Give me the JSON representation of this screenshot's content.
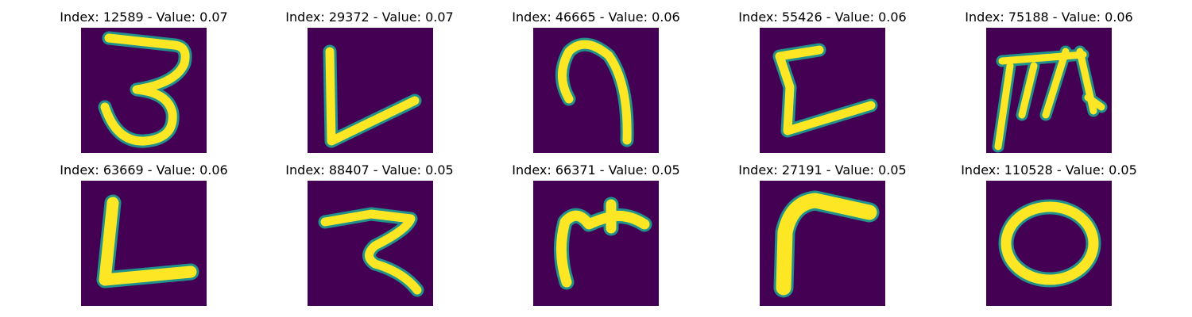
{
  "figure": {
    "panels": [
      {
        "title": "Index: 12589 - Value: 0.07",
        "glyph": "three-shape"
      },
      {
        "title": "Index: 29372 - Value: 0.07",
        "glyph": "l-shape-slanted"
      },
      {
        "title": "Index: 46665 - Value: 0.06",
        "glyph": "hook-shape"
      },
      {
        "title": "Index: 55426 - Value: 0.06",
        "glyph": "bracket-shape"
      },
      {
        "title": "Index: 75188 - Value: 0.06",
        "glyph": "stroke-cluster-shape"
      },
      {
        "title": "Index: 63669 - Value: 0.06",
        "glyph": "l-shape"
      },
      {
        "title": "Index: 88407 - Value: 0.05",
        "glyph": "z-curve-shape"
      },
      {
        "title": "Index: 66371 - Value: 0.05",
        "glyph": "branch-shape"
      },
      {
        "title": "Index: 27191 - Value: 0.05",
        "glyph": "angle-shape"
      },
      {
        "title": "Index: 110528 - Value: 0.05",
        "glyph": "ring-shape"
      }
    ],
    "colors": {
      "background": "#440154",
      "stroke_core": "#fde725",
      "stroke_edge": "#21918c"
    }
  }
}
